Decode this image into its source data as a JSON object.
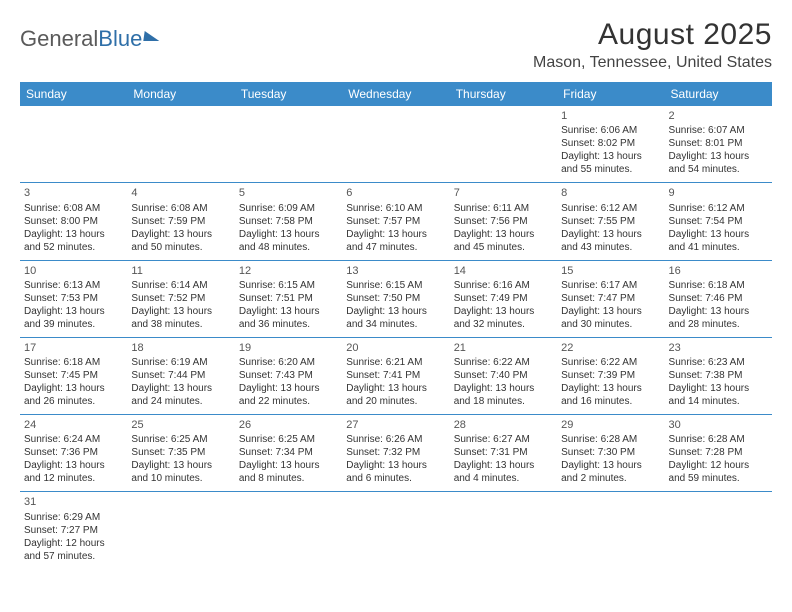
{
  "logo": {
    "part1": "General",
    "part2": "Blue"
  },
  "title": "August 2025",
  "location": "Mason, Tennessee, United States",
  "colors": {
    "header_bg": "#3b8bc9",
    "header_text": "#ffffff",
    "divider": "#3b8bc9",
    "text": "#333333",
    "logo_gray": "#5a5a5a",
    "logo_blue": "#2f6fa8"
  },
  "day_headers": [
    "Sunday",
    "Monday",
    "Tuesday",
    "Wednesday",
    "Thursday",
    "Friday",
    "Saturday"
  ],
  "weeks": [
    [
      null,
      null,
      null,
      null,
      null,
      {
        "n": "1",
        "sr": "6:06 AM",
        "ss": "8:02 PM",
        "dh": "13",
        "dm": "55"
      },
      {
        "n": "2",
        "sr": "6:07 AM",
        "ss": "8:01 PM",
        "dh": "13",
        "dm": "54"
      }
    ],
    [
      {
        "n": "3",
        "sr": "6:08 AM",
        "ss": "8:00 PM",
        "dh": "13",
        "dm": "52"
      },
      {
        "n": "4",
        "sr": "6:08 AM",
        "ss": "7:59 PM",
        "dh": "13",
        "dm": "50"
      },
      {
        "n": "5",
        "sr": "6:09 AM",
        "ss": "7:58 PM",
        "dh": "13",
        "dm": "48"
      },
      {
        "n": "6",
        "sr": "6:10 AM",
        "ss": "7:57 PM",
        "dh": "13",
        "dm": "47"
      },
      {
        "n": "7",
        "sr": "6:11 AM",
        "ss": "7:56 PM",
        "dh": "13",
        "dm": "45"
      },
      {
        "n": "8",
        "sr": "6:12 AM",
        "ss": "7:55 PM",
        "dh": "13",
        "dm": "43"
      },
      {
        "n": "9",
        "sr": "6:12 AM",
        "ss": "7:54 PM",
        "dh": "13",
        "dm": "41"
      }
    ],
    [
      {
        "n": "10",
        "sr": "6:13 AM",
        "ss": "7:53 PM",
        "dh": "13",
        "dm": "39"
      },
      {
        "n": "11",
        "sr": "6:14 AM",
        "ss": "7:52 PM",
        "dh": "13",
        "dm": "38"
      },
      {
        "n": "12",
        "sr": "6:15 AM",
        "ss": "7:51 PM",
        "dh": "13",
        "dm": "36"
      },
      {
        "n": "13",
        "sr": "6:15 AM",
        "ss": "7:50 PM",
        "dh": "13",
        "dm": "34"
      },
      {
        "n": "14",
        "sr": "6:16 AM",
        "ss": "7:49 PM",
        "dh": "13",
        "dm": "32"
      },
      {
        "n": "15",
        "sr": "6:17 AM",
        "ss": "7:47 PM",
        "dh": "13",
        "dm": "30"
      },
      {
        "n": "16",
        "sr": "6:18 AM",
        "ss": "7:46 PM",
        "dh": "13",
        "dm": "28"
      }
    ],
    [
      {
        "n": "17",
        "sr": "6:18 AM",
        "ss": "7:45 PM",
        "dh": "13",
        "dm": "26"
      },
      {
        "n": "18",
        "sr": "6:19 AM",
        "ss": "7:44 PM",
        "dh": "13",
        "dm": "24"
      },
      {
        "n": "19",
        "sr": "6:20 AM",
        "ss": "7:43 PM",
        "dh": "13",
        "dm": "22"
      },
      {
        "n": "20",
        "sr": "6:21 AM",
        "ss": "7:41 PM",
        "dh": "13",
        "dm": "20"
      },
      {
        "n": "21",
        "sr": "6:22 AM",
        "ss": "7:40 PM",
        "dh": "13",
        "dm": "18"
      },
      {
        "n": "22",
        "sr": "6:22 AM",
        "ss": "7:39 PM",
        "dh": "13",
        "dm": "16"
      },
      {
        "n": "23",
        "sr": "6:23 AM",
        "ss": "7:38 PM",
        "dh": "13",
        "dm": "14"
      }
    ],
    [
      {
        "n": "24",
        "sr": "6:24 AM",
        "ss": "7:36 PM",
        "dh": "13",
        "dm": "12"
      },
      {
        "n": "25",
        "sr": "6:25 AM",
        "ss": "7:35 PM",
        "dh": "13",
        "dm": "10"
      },
      {
        "n": "26",
        "sr": "6:25 AM",
        "ss": "7:34 PM",
        "dh": "13",
        "dm": "8"
      },
      {
        "n": "27",
        "sr": "6:26 AM",
        "ss": "7:32 PM",
        "dh": "13",
        "dm": "6"
      },
      {
        "n": "28",
        "sr": "6:27 AM",
        "ss": "7:31 PM",
        "dh": "13",
        "dm": "4"
      },
      {
        "n": "29",
        "sr": "6:28 AM",
        "ss": "7:30 PM",
        "dh": "13",
        "dm": "2"
      },
      {
        "n": "30",
        "sr": "6:28 AM",
        "ss": "7:28 PM",
        "dh": "12",
        "dm": "59"
      }
    ],
    [
      {
        "n": "31",
        "sr": "6:29 AM",
        "ss": "7:27 PM",
        "dh": "12",
        "dm": "57"
      },
      null,
      null,
      null,
      null,
      null,
      null
    ]
  ],
  "labels": {
    "sunrise": "Sunrise: ",
    "sunset": "Sunset: ",
    "daylight_prefix": "Daylight: ",
    "hours_word": " hours",
    "and_word": "and ",
    "minutes_word": " minutes."
  }
}
